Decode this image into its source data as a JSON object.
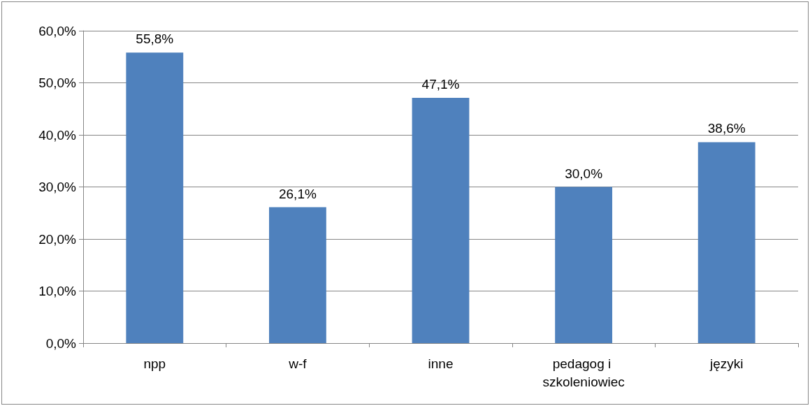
{
  "chart_data": {
    "type": "bar",
    "categories": [
      "npp",
      "w-f",
      "inne",
      "pedagog i szkoleniowiec",
      "języki"
    ],
    "values": [
      55.8,
      26.1,
      47.1,
      30.0,
      38.6
    ],
    "value_labels": [
      "55,8%",
      "26,1%",
      "47,1%",
      "30,0%",
      "38,6%"
    ],
    "color": "#4f81bd",
    "ylim": [
      0,
      60
    ],
    "yticks": [
      {
        "value": 0,
        "label": "0,0%"
      },
      {
        "value": 10,
        "label": "10,0%"
      },
      {
        "value": 20,
        "label": "20,0%"
      },
      {
        "value": 30,
        "label": "30,0%"
      },
      {
        "value": 40,
        "label": "40,0%"
      },
      {
        "value": 50,
        "label": "50,0%"
      },
      {
        "value": 60,
        "label": "60,0%"
      }
    ],
    "grid": "y"
  }
}
